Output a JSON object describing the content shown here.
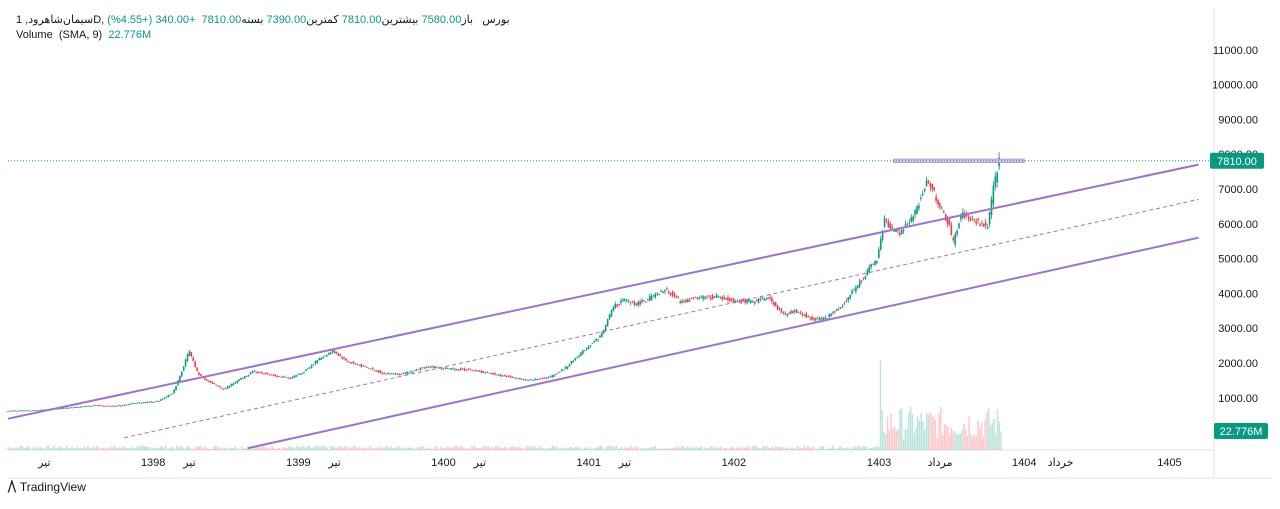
{
  "legend": {
    "symbol": "سیمان‌شاهرود, 1D, بورس",
    "open_label": "باز",
    "open": "7580.00",
    "high_label": "بیشترین",
    "high": "7810.00",
    "low_label": "کمترین",
    "low": "7390.00",
    "close_label": "بسته",
    "close": "7810.00",
    "change": "+340.00 (+4.55%)",
    "volume_label": "Volume",
    "volume_params": "(SMA, 9)",
    "volume_value": "22.776M"
  },
  "price_badge": "7810.00",
  "volume_badge": "22.776M",
  "brand": {
    "name": "TradingView"
  },
  "colors": {
    "up": "#089981",
    "down": "#f23645",
    "channel": "#9c72d0",
    "last_price": "#089981",
    "resistance_zone": "#d7c3ee"
  },
  "chart_data": {
    "type": "candlestick",
    "y_axis": {
      "ticks": [
        1000,
        2000,
        3000,
        4000,
        5000,
        6000,
        7000,
        8000,
        9000,
        10000,
        11000
      ],
      "tick_labels": [
        "1000.00",
        "2000.00",
        "3000.00",
        "4000.00",
        "5000.00",
        "6000.00",
        "7000.00",
        "8000.00",
        "9000.00",
        "10000.00",
        "11000.00"
      ],
      "range": [
        -500,
        12200
      ]
    },
    "x_axis": {
      "labels": [
        {
          "t": 1397.25,
          "text": "تیر"
        },
        {
          "t": 1398.0,
          "text": "1398"
        },
        {
          "t": 1398.25,
          "text": "تیر"
        },
        {
          "t": 1399.0,
          "text": "1399"
        },
        {
          "t": 1399.25,
          "text": "تیر"
        },
        {
          "t": 1400.0,
          "text": "1400"
        },
        {
          "t": 1400.25,
          "text": "تیر"
        },
        {
          "t": 1401.0,
          "text": "1401"
        },
        {
          "t": 1401.25,
          "text": "تیر"
        },
        {
          "t": 1402.0,
          "text": "1402"
        },
        {
          "t": 1403.0,
          "text": "1403"
        },
        {
          "t": 1403.42,
          "text": "مرداد"
        },
        {
          "t": 1404.0,
          "text": "1404"
        },
        {
          "t": 1404.25,
          "text": "خرداد"
        },
        {
          "t": 1405.0,
          "text": "1405"
        }
      ],
      "range": [
        1397.0,
        1405.3
      ]
    },
    "price_path": [
      [
        1397.0,
        620
      ],
      [
        1397.2,
        640
      ],
      [
        1397.4,
        700
      ],
      [
        1397.6,
        780
      ],
      [
        1397.75,
        760
      ],
      [
        1397.9,
        850
      ],
      [
        1398.05,
        900
      ],
      [
        1398.15,
        1150
      ],
      [
        1398.2,
        1650
      ],
      [
        1398.26,
        2350
      ],
      [
        1398.32,
        1700
      ],
      [
        1398.4,
        1450
      ],
      [
        1398.5,
        1250
      ],
      [
        1398.6,
        1500
      ],
      [
        1398.7,
        1750
      ],
      [
        1398.85,
        1650
      ],
      [
        1398.95,
        1550
      ],
      [
        1399.05,
        1750
      ],
      [
        1399.15,
        2100
      ],
      [
        1399.25,
        2350
      ],
      [
        1399.35,
        2050
      ],
      [
        1399.5,
        1850
      ],
      [
        1399.6,
        1700
      ],
      [
        1399.75,
        1700
      ],
      [
        1399.9,
        1900
      ],
      [
        1400.0,
        1850
      ],
      [
        1400.2,
        1800
      ],
      [
        1400.4,
        1650
      ],
      [
        1400.6,
        1500
      ],
      [
        1400.75,
        1600
      ],
      [
        1400.85,
        1850
      ],
      [
        1401.0,
        2450
      ],
      [
        1401.1,
        2800
      ],
      [
        1401.18,
        3600
      ],
      [
        1401.25,
        3800
      ],
      [
        1401.35,
        3700
      ],
      [
        1401.45,
        3900
      ],
      [
        1401.55,
        4100
      ],
      [
        1401.65,
        3750
      ],
      [
        1401.75,
        3850
      ],
      [
        1401.9,
        3900
      ],
      [
        1402.0,
        3800
      ],
      [
        1402.15,
        3750
      ],
      [
        1402.25,
        3900
      ],
      [
        1402.35,
        3400
      ],
      [
        1402.45,
        3500
      ],
      [
        1402.55,
        3250
      ],
      [
        1402.65,
        3300
      ],
      [
        1402.75,
        3600
      ],
      [
        1403.0,
        5000
      ],
      [
        1403.05,
        6100
      ],
      [
        1403.15,
        5700
      ],
      [
        1403.25,
        6200
      ],
      [
        1403.35,
        7300
      ],
      [
        1403.42,
        6600
      ],
      [
        1403.5,
        5900
      ],
      [
        1403.52,
        5400
      ],
      [
        1403.58,
        6300
      ],
      [
        1403.65,
        6100
      ],
      [
        1403.72,
        6000
      ],
      [
        1403.76,
        5900
      ],
      [
        1403.8,
        7000
      ],
      [
        1403.84,
        7810
      ]
    ],
    "volume": {
      "unit": "shares",
      "value_last_sma": "22.776M",
      "peak_period": [
        1403.0,
        1403.84
      ]
    },
    "overlays": {
      "upper_channel": [
        [
          1397.0,
          400
        ],
        [
          1405.2,
          7700
        ]
      ],
      "middle_channel_dashed": [
        [
          1397.8,
          -150
        ],
        [
          1405.2,
          6700
        ]
      ],
      "lower_channel": [
        [
          1398.65,
          -450
        ],
        [
          1405.2,
          5600
        ]
      ],
      "last_price_line": 7810,
      "resistance_zone": {
        "from": 1403.1,
        "to": 1404.0,
        "low": 7760,
        "high": 7860
      }
    }
  }
}
